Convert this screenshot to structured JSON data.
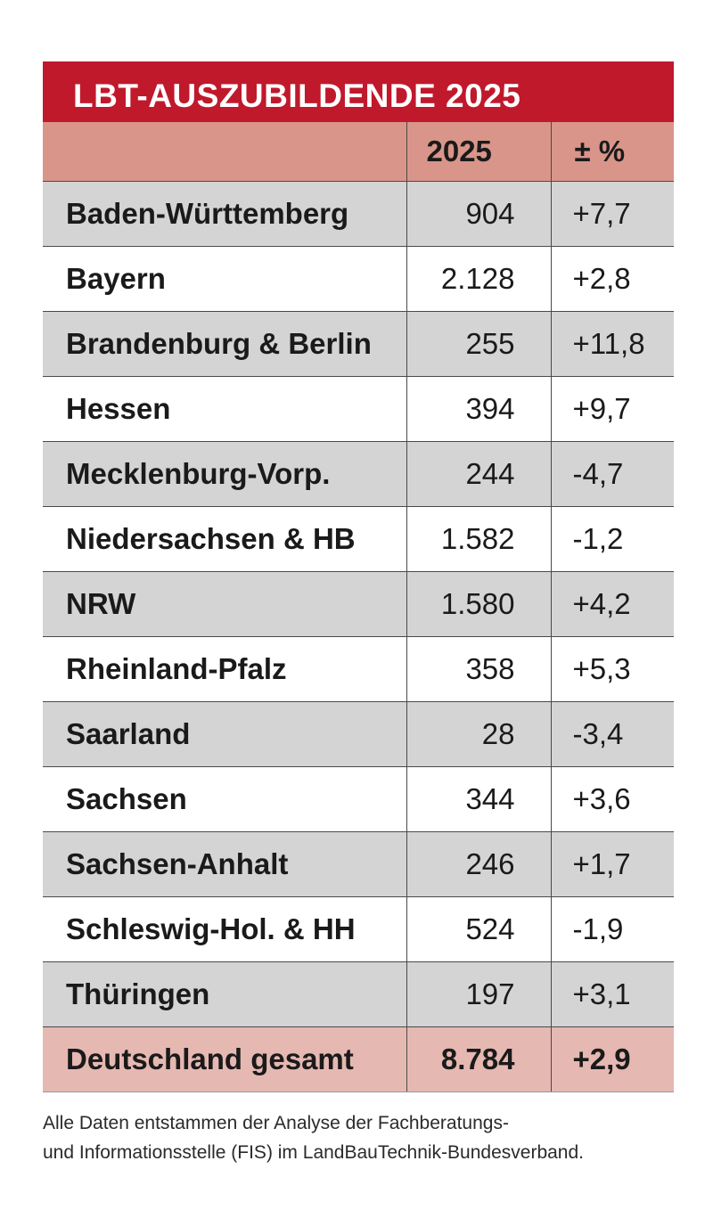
{
  "chart_data": {
    "type": "table",
    "title": "LBT-AUSZUBILDENDE 2025",
    "columns": [
      "",
      "2025",
      "± %"
    ],
    "rows": [
      {
        "region": "Baden-Württemberg",
        "value": "904",
        "change": "+7,7"
      },
      {
        "region": "Bayern",
        "value": "2.128",
        "change": "+2,8"
      },
      {
        "region": "Brandenburg & Berlin",
        "value": "255",
        "change": "+11,8"
      },
      {
        "region": "Hessen",
        "value": "394",
        "change": "+9,7"
      },
      {
        "region": "Mecklenburg-Vorp.",
        "value": "244",
        "change": "-4,7"
      },
      {
        "region": "Niedersachsen & HB",
        "value": "1.582",
        "change": "-1,2"
      },
      {
        "region": "NRW",
        "value": "1.580",
        "change": "+4,2"
      },
      {
        "region": "Rheinland-Pfalz",
        "value": "358",
        "change": "+5,3"
      },
      {
        "region": "Saarland",
        "value": "28",
        "change": "-3,4"
      },
      {
        "region": "Sachsen",
        "value": "344",
        "change": "+3,6"
      },
      {
        "region": "Sachsen-Anhalt",
        "value": "246",
        "change": "+1,7"
      },
      {
        "region": "Schleswig-Hol. & HH",
        "value": "524",
        "change": "-1,9"
      },
      {
        "region": "Thüringen",
        "value": "197",
        "change": "+3,1"
      }
    ],
    "total": {
      "region": "Deutschland gesamt",
      "value": "8.784",
      "change": "+2,9"
    }
  },
  "footnote": {
    "line1": "Alle Daten entstammen der Analyse der Fachberatungs-",
    "line2": "und Informationsstelle (FIS) im LandBauTechnik-Bundesverband."
  },
  "colors": {
    "title_bar": "#c0192c",
    "header_row": "#d9958a",
    "shaded_row": "#d4d4d4",
    "total_row": "#e6b8b2"
  }
}
